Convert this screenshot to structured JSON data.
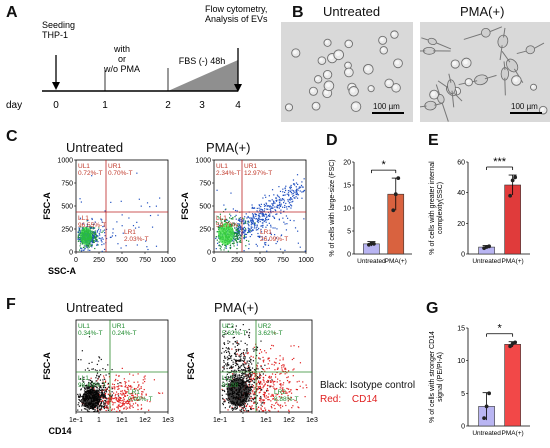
{
  "panels": {
    "A": {
      "letter": "A",
      "timeline": {
        "day_label": "day",
        "ticks": [
          "0",
          "1",
          "2",
          "3",
          "4"
        ],
        "seeding": "Seeding\nTHP-1",
        "with_pma": "with\nor\nw/o PMA",
        "fbs": "FBS (-) 48h",
        "flow": "Flow cytometry,\nAnalysis of EVs"
      }
    },
    "B": {
      "letter": "B",
      "titles": [
        "Untreated",
        "PMA(+)"
      ],
      "scalebar": "100 µm"
    },
    "C": {
      "letter": "C",
      "titles": [
        "Untreated",
        "PMA(+)"
      ],
      "xlabel": "SSC-A",
      "ylabel": "FSC-A",
      "xticks": [
        "0",
        "250",
        "500",
        "750",
        "1000"
      ],
      "yticks": [
        "0",
        "250",
        "500",
        "750",
        "1000"
      ],
      "quadrants": [
        {
          "UL": [
            "UL1",
            "0.72%-T"
          ],
          "UR": [
            "UR1",
            "0.70%-T"
          ],
          "LL": [
            "LL1",
            "96.55%-T"
          ],
          "LR": [
            "LR1",
            "2.03%-T"
          ]
        },
        {
          "UL": [
            "UL1",
            "2.34%-T"
          ],
          "UR": [
            "UR1",
            "12.97%-T"
          ],
          "LL": [
            "LL1",
            "59.70%"
          ],
          "LR": [
            "LR1",
            "26.09%-T"
          ]
        }
      ]
    },
    "D": {
      "letter": "D"
    },
    "E": {
      "letter": "E"
    },
    "F": {
      "letter": "F",
      "titles": [
        "Untreated",
        "PMA(+)"
      ],
      "xlabel": "CD14",
      "ylabel": "FSC-A",
      "xticks": [
        "1e-1",
        "1",
        "1e1",
        "1e2",
        "1e3"
      ],
      "quadrants": [
        {
          "UL": [
            "UL1",
            "0.34%-T"
          ],
          "UR": [
            "UR1",
            "0.24%-T"
          ],
          "LL": [
            "LL1",
            "98.43%-T"
          ],
          "LR": [
            "LR1",
            "0.99%-T"
          ]
        },
        {
          "UL": [
            "UL2",
            "5.62%-T"
          ],
          "UR": [
            "UR2",
            "3.62%-T"
          ],
          "LL": [
            "LL2",
            "81.88"
          ],
          "LR": [
            "LR2",
            "8.88%-T"
          ]
        }
      ],
      "legend": {
        "black_key": "Black:",
        "black_val": "Isotype control",
        "red_key": "Red:",
        "red_val": "CD14"
      }
    },
    "G": {
      "letter": "G"
    }
  },
  "chart_data": [
    {
      "panel": "D",
      "type": "bar",
      "categories": [
        "Untreated",
        "PMA(+)"
      ],
      "values": [
        2.2,
        13.0
      ],
      "errors": [
        0.5,
        3.5
      ],
      "points": [
        [
          2.0,
          2.3,
          2.2
        ],
        [
          9.5,
          13.0,
          16.5
        ]
      ],
      "ylabel": "% of cells with large-size (FSC)",
      "ylim": [
        0,
        20
      ],
      "yticks": [
        "0",
        "5",
        "10",
        "15",
        "20"
      ],
      "significance": "*",
      "colors": [
        "#b9b5f2",
        "#d9623f"
      ]
    },
    {
      "panel": "E",
      "type": "bar",
      "categories": [
        "Untreated",
        "PMA(+)"
      ],
      "values": [
        4.5,
        45
      ],
      "errors": [
        1.0,
        6.5
      ],
      "points": [
        [
          3.8,
          4.6,
          5.0
        ],
        [
          38,
          48,
          50
        ]
      ],
      "ylabel": "% of cells with greater internal\ncomplexity(SSC)",
      "ylim": [
        0,
        60
      ],
      "yticks": [
        "0",
        "20",
        "40",
        "60"
      ],
      "significance": "***",
      "colors": [
        "#b9b5f2",
        "#e03b3b"
      ]
    },
    {
      "panel": "G",
      "type": "bar",
      "categories": [
        "Untreated",
        "PMA(+)"
      ],
      "values": [
        3.0,
        12.5
      ],
      "errors": [
        2.1,
        0.4
      ],
      "points": [
        [
          1.2,
          3.0,
          5.0
        ],
        [
          12.2,
          12.6,
          12.8
        ]
      ],
      "ylabel": "% of cells with stronger CD14\nsignal (PE/PI-A)",
      "ylim": [
        0,
        15
      ],
      "yticks": [
        "0",
        "5",
        "10",
        "15"
      ],
      "significance": "*",
      "colors": [
        "#b9b5f2",
        "#f24848"
      ]
    }
  ]
}
